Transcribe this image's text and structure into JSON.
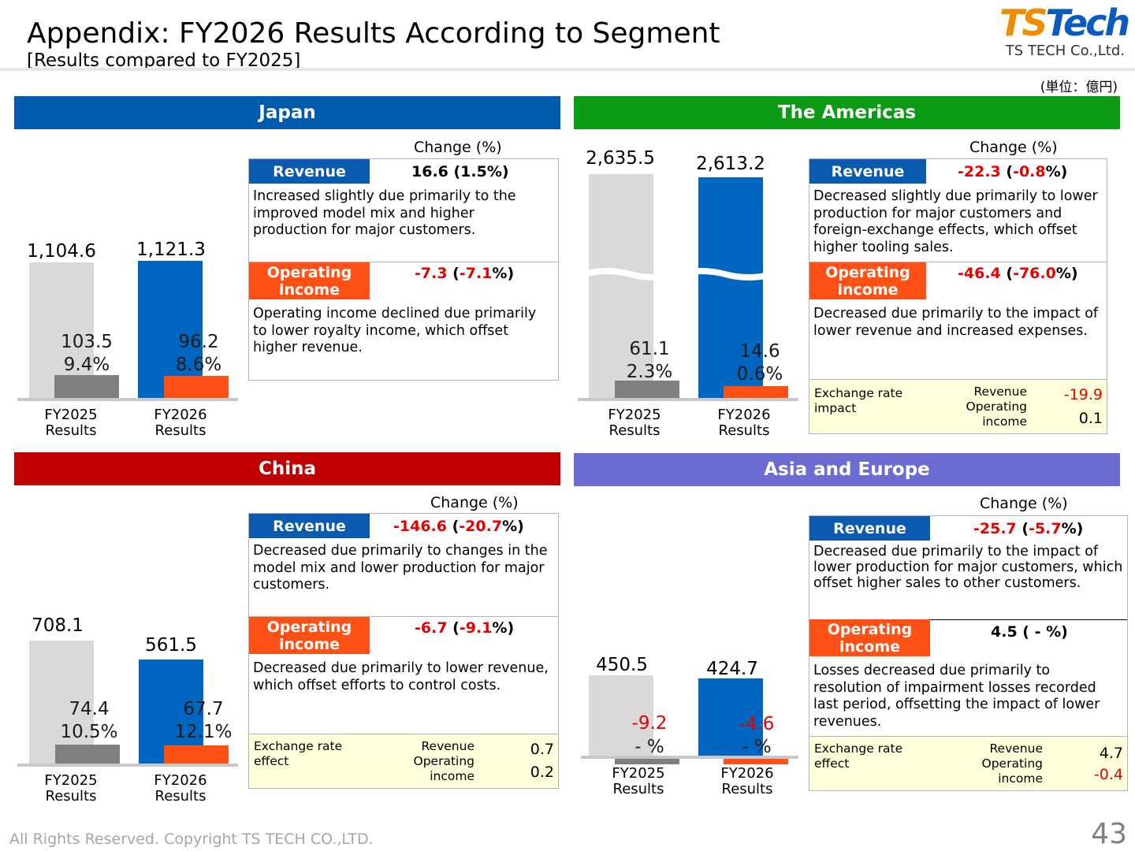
{
  "header": {
    "title": "Appendix: FY2026 Results According to Segment",
    "subtitle": "[Results compared to FY2025]",
    "logo_text": "TSTech",
    "logo_sub": "TS TECH Co.,Ltd.",
    "unit": "(単位：億円)"
  },
  "colors": {
    "japan": "#005bac",
    "americas": "#0a9a14",
    "china": "#c00000",
    "asia_europe": "#6b6bd2",
    "fy2025_bar": "#d9d9d9",
    "fy2026_bar": "#0066c0",
    "op2025": "#7f7f7f",
    "op2026": "#ff5015"
  },
  "segments": {
    "japan": {
      "name": "Japan",
      "rev_2025": "1,104.6",
      "rev_2026": "1,121.3",
      "op_2025": "103.5",
      "margin_2025": "9.4%",
      "op_2026": "96.2",
      "margin_2026": "8.6%",
      "x_2025": [
        "FY2025",
        "Results"
      ],
      "x_2026": [
        "FY2026",
        "Results"
      ],
      "change_header": "Change (%)",
      "revenue_tag": "Revenue",
      "revenue_change": "16.6 (1.5%)",
      "revenue_desc": "Increased slightly due primarily to the improved model mix and higher production for major customers.",
      "op_tag": "Operating income",
      "op_change_a": "-7.3",
      "op_change_b": " (",
      "op_change_c": "-7.1",
      "op_change_d": "%)",
      "op_desc": "Operating income declined due primarily to lower royalty income, which offset higher revenue."
    },
    "americas": {
      "name": "The Americas",
      "rev_2025": "2,635.5",
      "rev_2026": "2,613.2",
      "op_2025": "61.1",
      "margin_2025": "2.3%",
      "op_2026": "14.6",
      "margin_2026": "0.6%",
      "x_2025": [
        "FY2025",
        "Results"
      ],
      "x_2026": [
        "FY2026",
        "Results"
      ],
      "change_header": "Change (%)",
      "revenue_tag": "Revenue",
      "revenue_change_a": "-22.3",
      "revenue_change_b": " (",
      "revenue_change_c": "-0.8",
      "revenue_change_d": "%)",
      "revenue_desc": "Decreased slightly due primarily to lower production for major customers and foreign-exchange effects, which offset higher tooling sales.",
      "op_tag": "Operating income",
      "op_change_a": "-46.4",
      "op_change_b": " (",
      "op_change_c": "-76.0",
      "op_change_d": "%)",
      "op_desc": "Decreased due primarily to the impact of lower revenue and increased expenses.",
      "fx_label": "Exchange rate impact",
      "fx_rev_label": "Revenue",
      "fx_op_label": "Operating income",
      "fx_rev": "-19.9",
      "fx_op": "0.1"
    },
    "china": {
      "name": "China",
      "rev_2025": "708.1",
      "rev_2026": "561.5",
      "op_2025": "74.4",
      "margin_2025": "10.5%",
      "op_2026": "67.7",
      "margin_2026": "12.1%",
      "x_2025": [
        "FY2025",
        "Results"
      ],
      "x_2026": [
        "FY2026",
        "Results"
      ],
      "change_header": "Change (%)",
      "revenue_tag": "Revenue",
      "revenue_change_a": "-146.6",
      "revenue_change_b": " (",
      "revenue_change_c": "-20.7",
      "revenue_change_d": "%)",
      "revenue_desc": "Decreased due primarily to changes in the model mix and lower production for major customers.",
      "op_tag": "Operating income",
      "op_change_a": "-6.7",
      "op_change_b": " (",
      "op_change_c": "-9.1",
      "op_change_d": "%)",
      "op_desc": "Decreased due primarily to lower revenue, which offset efforts to control costs.",
      "fx_label": "Exchange rate effect",
      "fx_rev_label": "Revenue",
      "fx_op_label": "Operating income",
      "fx_rev": "0.7",
      "fx_op": "0.2"
    },
    "asia_europe": {
      "name": "Asia and Europe",
      "rev_2025": "450.5",
      "rev_2026": "424.7",
      "op_2025": "-9.2",
      "margin_2025": "- %",
      "op_2026": "-4.6",
      "margin_2026": "- %",
      "x_2025": [
        "FY2025",
        "Results"
      ],
      "x_2026": [
        "FY2026",
        "Results"
      ],
      "change_header": "Change (%)",
      "revenue_tag": "Revenue",
      "revenue_change_a": "-25.7",
      "revenue_change_b": " (",
      "revenue_change_c": "-5.7",
      "revenue_change_d": "%)",
      "revenue_desc": "Decreased due primarily to the impact of lower production for major customers, which offset higher sales to other customers.",
      "op_tag": "Operating income",
      "op_change": "4.5 ( - %)",
      "op_desc": "Losses decreased due primarily to resolution of impairment losses recorded last period, offsetting the impact of lower revenues.",
      "fx_label": "Exchange rate effect",
      "fx_rev_label": "Revenue",
      "fx_op_label": "Operating income",
      "fx_rev": "4.7",
      "fx_op": "-0.4"
    }
  },
  "footer": {
    "copyright": "All Rights Reserved. Copyright TS TECH CO.,LTD.",
    "page": "43"
  }
}
